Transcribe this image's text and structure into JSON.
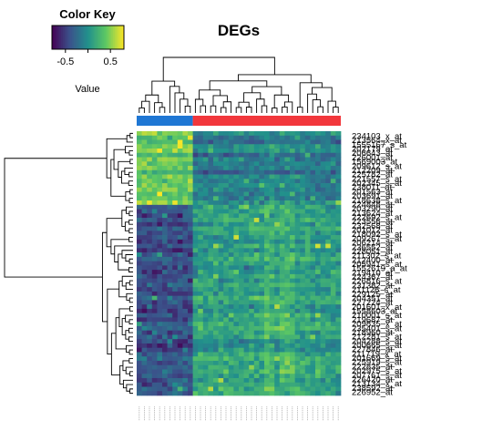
{
  "chart_data": {
    "type": "heatmap",
    "title": "DEGs",
    "color_key": {
      "title": "Color Key",
      "xlabel": "Value",
      "ticks": [
        -0.5,
        0,
        0.5
      ],
      "tick_labels": [
        "-0.5",
        "0",
        "0.5"
      ],
      "range": [
        -0.8,
        0.8
      ],
      "colormap": [
        "#440154",
        "#3b528b",
        "#21908c",
        "#5dc863",
        "#fde725"
      ]
    },
    "column_groups": [
      {
        "count": 11,
        "color": "#1f77d4"
      },
      {
        "count": 29,
        "color": "#f2373c"
      }
    ],
    "row_clusters": [
      {
        "count": 17,
        "left_group_level": 0.42,
        "right_group_level": -0.12
      },
      {
        "count": 44,
        "left_group_level": -0.42,
        "right_group_level": 0.08
      }
    ],
    "row_labels": [
      "234103_x_at",
      "213564_x_at",
      "1555167_s_at",
      "202179_at",
      "206643_at",
      "226001_at",
      "1569003_at",
      "209612_s_at",
      "212209_at",
      "225782_at",
      "221557_s_at",
      "202345_s_at",
      "238011_at",
      "201563_at",
      "203691_at",
      "218638_s_at",
      "224848_at",
      "203290_at",
      "213624_at",
      "222692_s_at",
      "223556_at",
      "232568_at",
      "201012_at",
      "218092_s_at",
      "209267_s_at",
      "206214_at",
      "236552_at",
      "228051_at",
      "211302_s_at",
      "212400_at",
      "205941_s_at",
      "1552619_a_at",
      "219410_at",
      "224367_at",
      "226816_s_at",
      "231382_at",
      "211126_s_at",
      "229125_at",
      "204351_at",
      "227224_at",
      "201601_x_at",
      "1558603_at",
      "210001_s_at",
      "219687_at",
      "209835_x_at",
      "235401_s_at",
      "218960_at",
      "212281_s_at",
      "204288_s_at",
      "200665_s_at",
      "227846_at",
      "211719_x_at",
      "201669_s_at",
      "225919_s_at",
      "222835_at",
      "202975_s_at",
      "207761_s_at",
      "226420_at",
      "213134_x_at",
      "238592_at",
      "226952_at"
    ]
  }
}
